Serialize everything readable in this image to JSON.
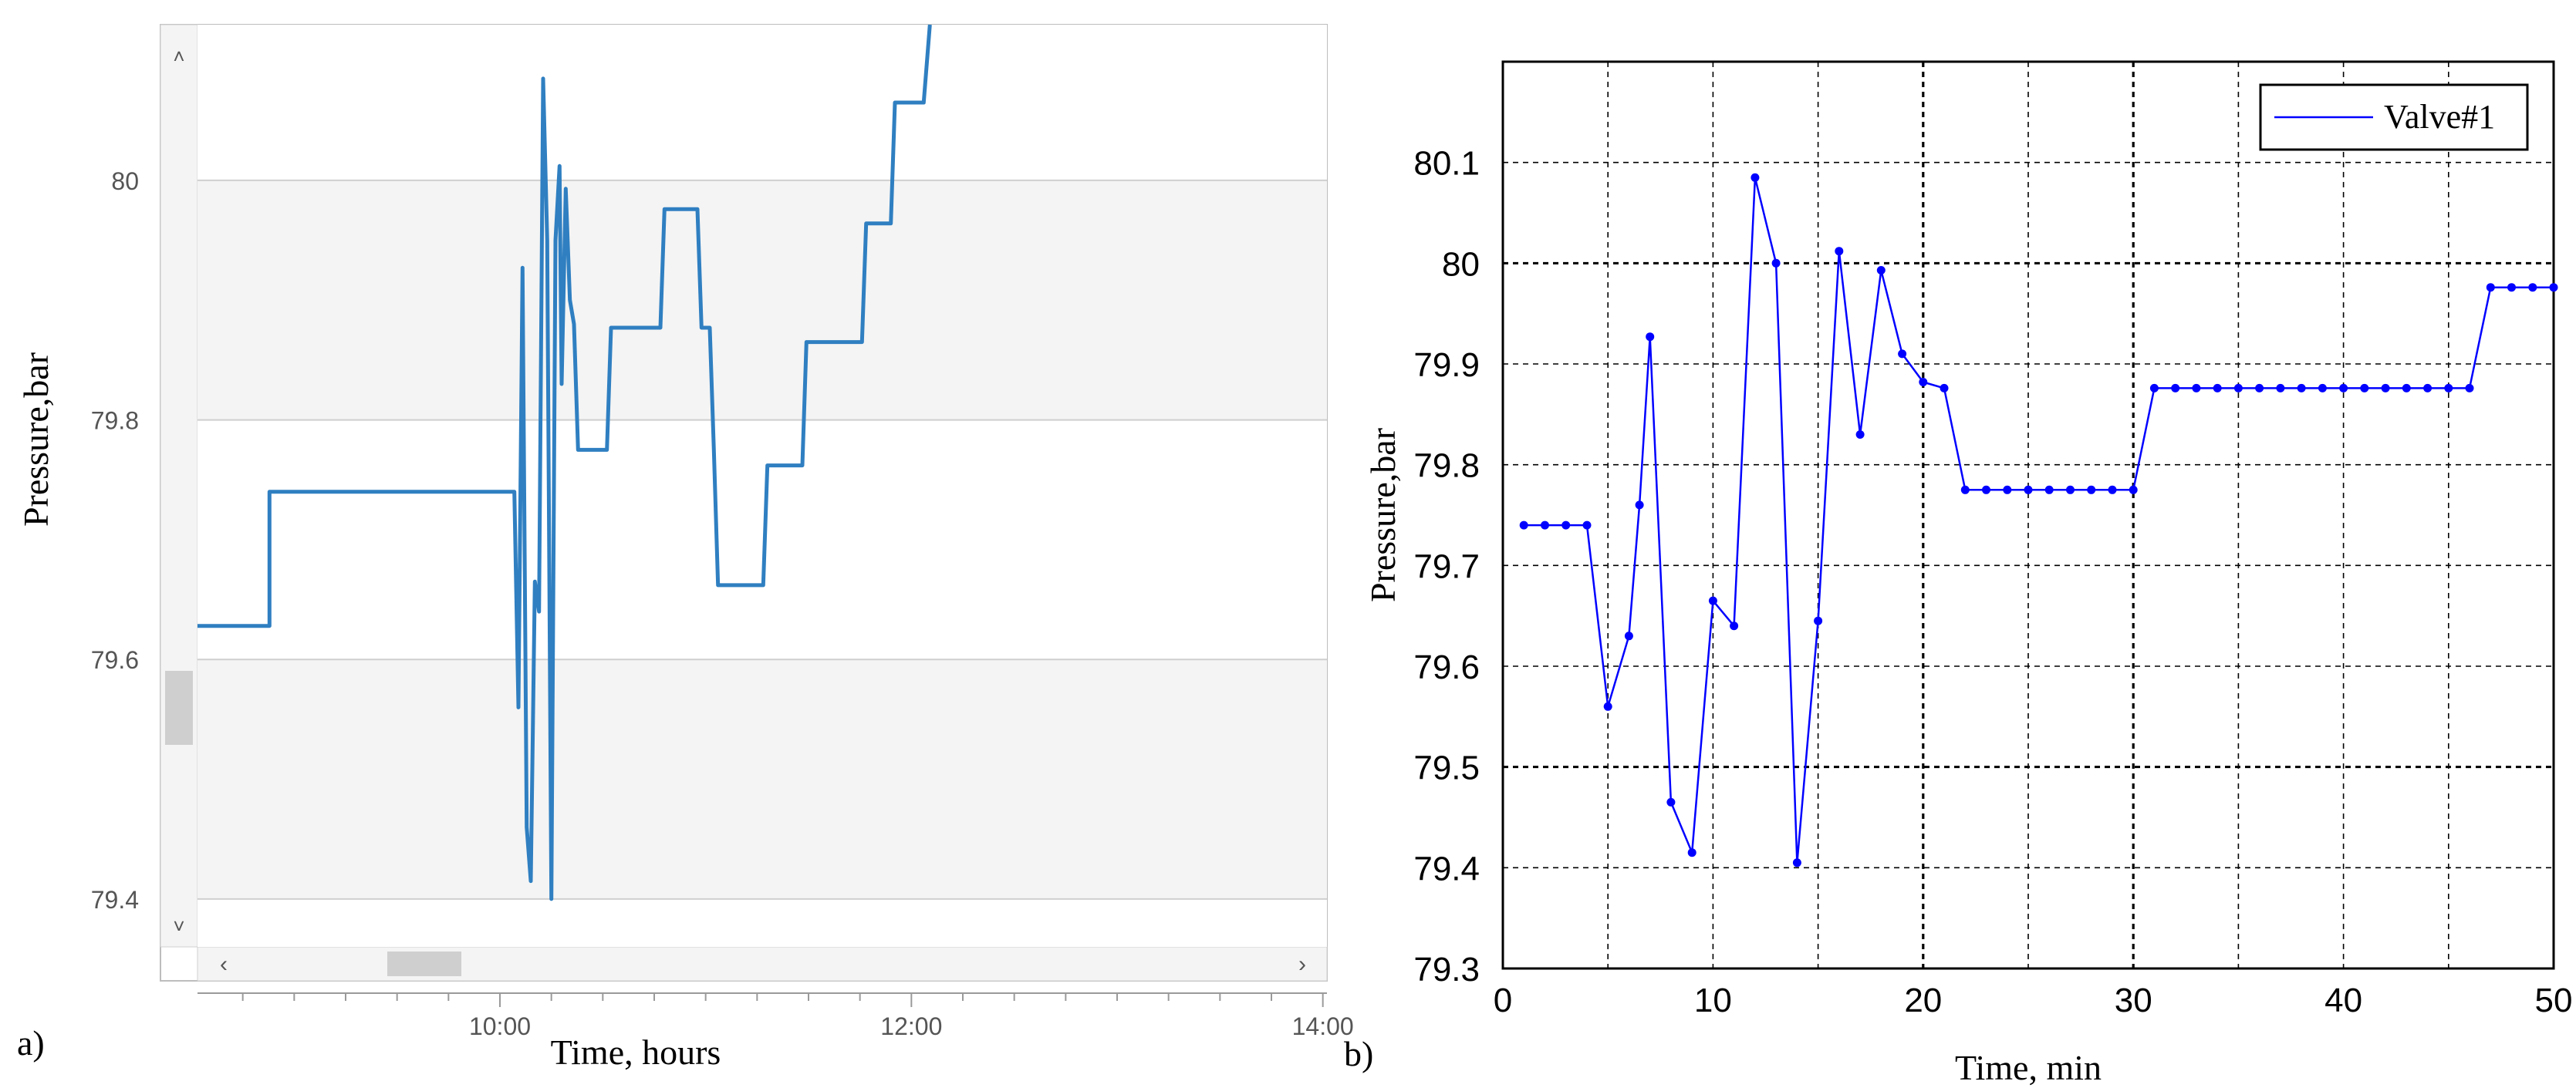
{
  "charts": [
    {
      "panel_label": "a)",
      "chart_data": {
        "type": "line",
        "title": "",
        "xlabel": "Time, hours",
        "ylabel": "Pressure,bar",
        "x_ticks": [
          "10:00",
          "12:00",
          "14:00"
        ],
        "y_ticks": [
          "79.4",
          "79.6",
          "79.8",
          "80"
        ],
        "xlim_hours": [
          8.53,
          14.02
        ],
        "ylim": [
          79.36,
          80.13
        ],
        "grid": "horizontal bands",
        "legend": "none",
        "x_unit": "hours",
        "series": [
          {
            "color": "#2f7fc1",
            "points": [
              [
                8.53,
                79.628
              ],
              [
                8.88,
                79.628
              ],
              [
                8.88,
                79.74
              ],
              [
                10.07,
                79.74
              ],
              [
                10.09,
                79.56
              ],
              [
                10.11,
                79.927
              ],
              [
                10.13,
                79.46
              ],
              [
                10.15,
                79.415
              ],
              [
                10.17,
                79.665
              ],
              [
                10.19,
                79.64
              ],
              [
                10.21,
                80.085
              ],
              [
                10.23,
                79.95
              ],
              [
                10.25,
                79.4
              ],
              [
                10.27,
                79.95
              ],
              [
                10.29,
                80.012
              ],
              [
                10.3,
                79.83
              ],
              [
                10.32,
                79.993
              ],
              [
                10.34,
                79.9
              ],
              [
                10.36,
                79.88
              ],
              [
                10.38,
                79.775
              ],
              [
                10.52,
                79.775
              ],
              [
                10.54,
                79.877
              ],
              [
                10.78,
                79.877
              ],
              [
                10.8,
                79.976
              ],
              [
                10.96,
                79.976
              ],
              [
                10.98,
                79.877
              ],
              [
                11.02,
                79.877
              ],
              [
                11.04,
                79.775
              ],
              [
                11.06,
                79.662
              ],
              [
                11.28,
                79.662
              ],
              [
                11.3,
                79.762
              ],
              [
                11.47,
                79.762
              ],
              [
                11.49,
                79.865
              ],
              [
                11.76,
                79.865
              ],
              [
                11.78,
                79.964
              ],
              [
                11.9,
                79.964
              ],
              [
                11.92,
                80.065
              ],
              [
                12.06,
                80.065
              ],
              [
                12.09,
                80.13
              ]
            ]
          }
        ]
      }
    },
    {
      "panel_label": "b)",
      "chart_data": {
        "type": "line",
        "title": "",
        "xlabel": "Time, min",
        "ylabel": "Pressure,bar",
        "x_ticks": [
          "0",
          "10",
          "20",
          "30",
          "40",
          "50"
        ],
        "y_ticks": [
          "79.3",
          "79.4",
          "79.5",
          "79.6",
          "79.7",
          "79.8",
          "79.9",
          "80",
          "80.1"
        ],
        "xlim": [
          0,
          50
        ],
        "ylim": [
          79.3,
          80.2
        ],
        "grid": "dashed",
        "legend": "top-right",
        "series": [
          {
            "name": "Valve#1",
            "color": "#0000ff",
            "x": [
              1,
              2,
              3,
              4,
              5,
              6,
              6.5,
              7,
              8,
              9,
              10,
              11,
              12,
              13,
              14,
              15,
              16,
              17,
              18,
              19,
              20,
              21,
              22,
              23,
              24,
              25,
              26,
              27,
              28,
              29,
              30,
              31,
              32,
              33,
              34,
              35,
              36,
              37,
              38,
              39,
              40,
              41,
              42,
              43,
              44,
              45,
              46,
              47,
              48,
              49,
              50
            ],
            "values": [
              79.74,
              79.74,
              79.74,
              79.74,
              79.56,
              79.63,
              79.76,
              79.927,
              79.465,
              79.415,
              79.665,
              79.64,
              80.085,
              80.0,
              79.405,
              79.645,
              80.012,
              79.83,
              79.993,
              79.91,
              79.882,
              79.876,
              79.775,
              79.775,
              79.775,
              79.775,
              79.775,
              79.775,
              79.775,
              79.775,
              79.775,
              79.876,
              79.876,
              79.876,
              79.876,
              79.876,
              79.876,
              79.876,
              79.876,
              79.876,
              79.876,
              79.876,
              79.876,
              79.876,
              79.876,
              79.876,
              79.876,
              79.976,
              79.976,
              79.976,
              79.976
            ]
          }
        ]
      }
    }
  ]
}
